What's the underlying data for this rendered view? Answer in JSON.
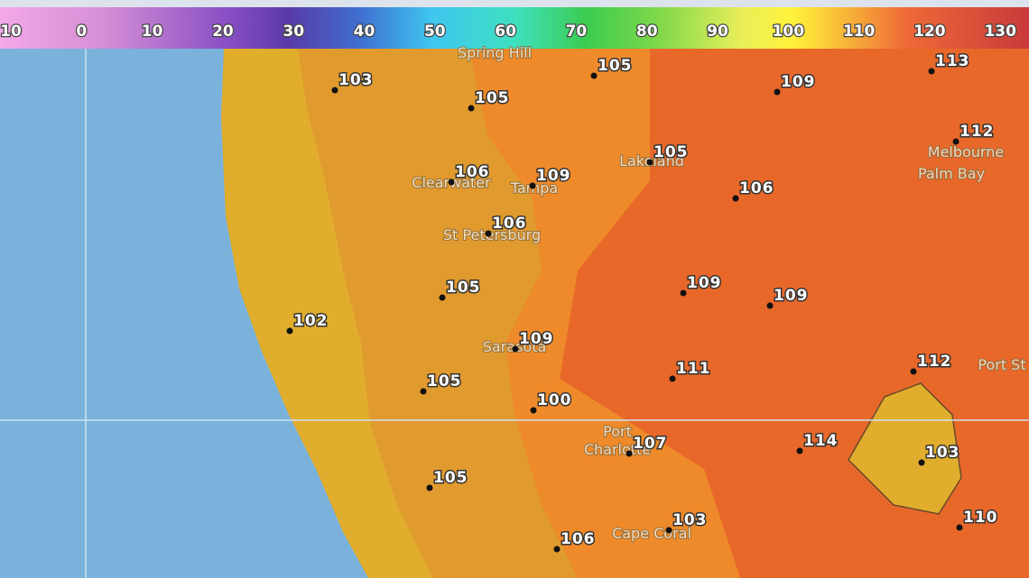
{
  "scale": {
    "labels": [
      10,
      0,
      10,
      20,
      30,
      40,
      50,
      60,
      70,
      80,
      90,
      100,
      110,
      120,
      130
    ]
  },
  "places": [
    "Spring Hill",
    "Lakeland",
    "Clearwater",
    "Tampa",
    "St Petersburg",
    "Sarasota",
    "Port",
    "Charlotte",
    "Cape Coral",
    "Melbourne",
    "Palm Bay",
    "Port St"
  ],
  "readings": [
    103,
    105,
    109,
    113,
    105,
    105,
    106,
    109,
    106,
    106,
    105,
    109,
    109,
    102,
    109,
    111,
    112,
    105,
    100,
    107,
    114,
    103,
    105,
    103,
    110,
    106,
    112
  ]
}
